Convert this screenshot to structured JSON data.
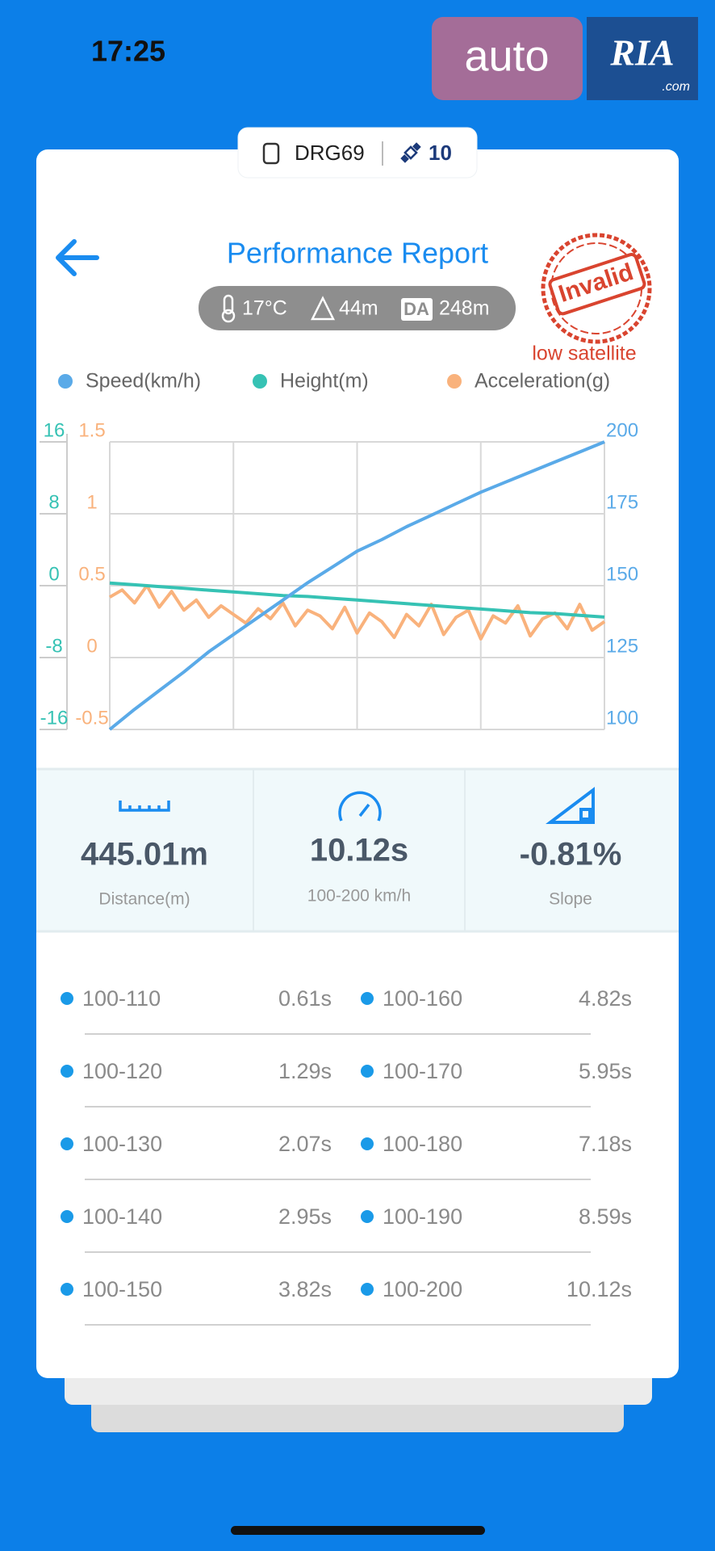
{
  "status_bar": {
    "time": "17:25"
  },
  "watermark": {
    "brand": "auto",
    "logo": "RIA",
    "domain": ".com"
  },
  "device": {
    "name": "DRG69",
    "satellites": "10"
  },
  "header": {
    "title": "Performance Report",
    "temperature": "17°C",
    "altitude": "44m",
    "da_label": "DA",
    "density_altitude": "248m",
    "stamp": "Invalid",
    "stamp_note": "low satellite"
  },
  "chart_data": {
    "type": "line",
    "ylim": [
      -16,
      16
    ],
    "yticks": [
      -16,
      -8,
      0,
      8,
      16
    ],
    "y3lim": [
      -0.5,
      1.5
    ],
    "y3ticks": [
      -0.5,
      0,
      0.5,
      1,
      1.5
    ],
    "y2lim": [
      100,
      200
    ],
    "y2ticks": [
      100,
      125,
      150,
      175,
      200
    ],
    "grid": true,
    "series": [
      {
        "name": "Speed(km/h)",
        "color": "#5aaae8",
        "axis": "y2",
        "values": [
          100,
          107,
          113.5,
          120,
          127,
          133,
          139,
          145,
          151,
          156.5,
          162,
          166,
          170.5,
          174.5,
          178.5,
          182.5,
          186,
          189.5,
          193,
          196.5,
          200
        ]
      },
      {
        "name": "Height(m)",
        "color": "#36c2b4",
        "axis": "y",
        "values": [
          0.3,
          0.1,
          -0.1,
          -0.3,
          -0.5,
          -0.7,
          -0.9,
          -1.1,
          -1.2,
          -1.4,
          -1.6,
          -1.8,
          -2,
          -2.2,
          -2.4,
          -2.6,
          -2.8,
          -3,
          -3.1,
          -3.3,
          -3.5
        ]
      },
      {
        "name": "Acceleration(g)",
        "color": "#f9b27c",
        "axis": "y3",
        "values": [
          0.42,
          0.47,
          0.38,
          0.5,
          0.35,
          0.46,
          0.33,
          0.4,
          0.28,
          0.36,
          0.3,
          0.24,
          0.34,
          0.27,
          0.38,
          0.22,
          0.33,
          0.29,
          0.2,
          0.35,
          0.17,
          0.31,
          0.25,
          0.14,
          0.3,
          0.22,
          0.37,
          0.16,
          0.28,
          0.33,
          0.13,
          0.29,
          0.24,
          0.36,
          0.15,
          0.27,
          0.31,
          0.2,
          0.37,
          0.19,
          0.25
        ]
      }
    ]
  },
  "summary": [
    {
      "value": "445.01m",
      "label": "Distance(m)"
    },
    {
      "value": "10.12s",
      "label": "100-200 km/h"
    },
    {
      "value": "-0.81%",
      "label": "Slope"
    }
  ],
  "splits": [
    [
      {
        "range": "100-110",
        "time": "0.61s"
      },
      {
        "range": "100-160",
        "time": "4.82s"
      }
    ],
    [
      {
        "range": "100-120",
        "time": "1.29s"
      },
      {
        "range": "100-170",
        "time": "5.95s"
      }
    ],
    [
      {
        "range": "100-130",
        "time": "2.07s"
      },
      {
        "range": "100-180",
        "time": "7.18s"
      }
    ],
    [
      {
        "range": "100-140",
        "time": "2.95s"
      },
      {
        "range": "100-190",
        "time": "8.59s"
      }
    ],
    [
      {
        "range": "100-150",
        "time": "3.82s"
      },
      {
        "range": "100-200",
        "time": "10.12s"
      }
    ]
  ]
}
